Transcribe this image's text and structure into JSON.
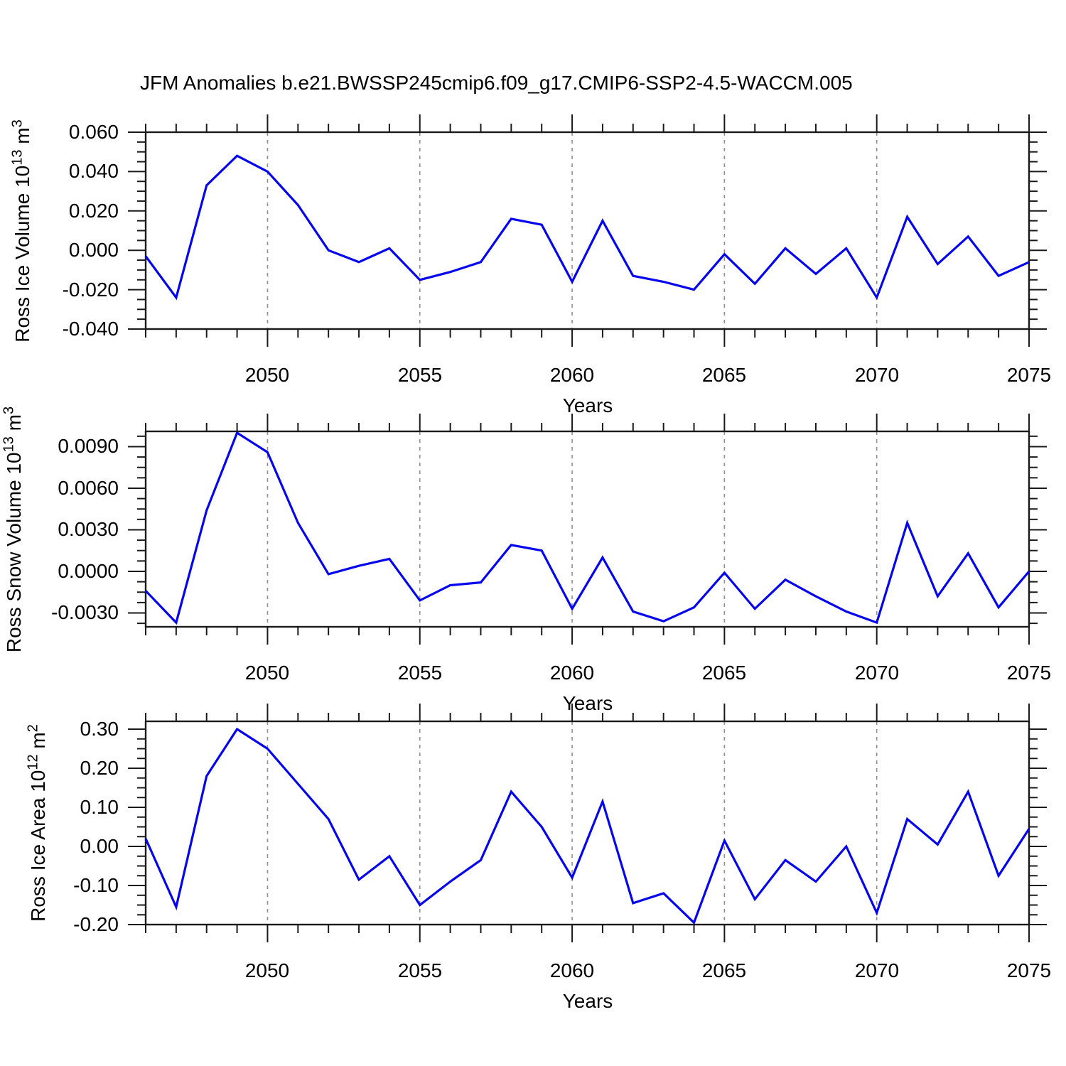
{
  "title": "JFM Anomalies b.e21.BWSSP245cmip6.f09_g17.CMIP6-SSP2-4.5-WACCM.005",
  "colors": {
    "line": "#0404ee",
    "grid": "#8f8f8f",
    "axis": "#1a1a1a",
    "text": "#000000",
    "background": "#ffffff"
  },
  "shared": {
    "xlabel": "Years",
    "xlim": [
      2046,
      2075
    ],
    "xtick_years": [
      2050,
      2055,
      2060,
      2065,
      2070,
      2075
    ],
    "xtick_labels": [
      "2050",
      "2055",
      "2060",
      "2065",
      "2070",
      "2075"
    ],
    "grid_years": [
      2050,
      2055,
      2060,
      2065,
      2070
    ],
    "years": [
      2046,
      2047,
      2048,
      2049,
      2050,
      2051,
      2052,
      2053,
      2054,
      2055,
      2056,
      2057,
      2058,
      2059,
      2060,
      2061,
      2062,
      2063,
      2064,
      2065,
      2066,
      2067,
      2068,
      2069,
      2070,
      2071,
      2072,
      2073,
      2074,
      2075
    ]
  },
  "chart_data": [
    {
      "type": "line",
      "name": "ross-ice-volume",
      "ylabel": {
        "text": "Ross Ice Volume 10",
        "exp": "13",
        "unit": " m",
        "unit_exp": "3"
      },
      "ylim": [
        -0.04,
        0.06
      ],
      "ytick_values": [
        0.06,
        0.04,
        0.02,
        0.0,
        -0.02,
        -0.04
      ],
      "ytick_labels": [
        "0.060",
        "0.040",
        "0.020",
        "0.000",
        "-0.020",
        "-0.040"
      ],
      "y_minor_step": 0.005,
      "values": [
        -0.003,
        -0.024,
        0.033,
        0.048,
        0.04,
        0.023,
        0.0,
        -0.006,
        0.001,
        -0.015,
        -0.011,
        -0.006,
        0.016,
        0.013,
        -0.016,
        0.015,
        -0.013,
        -0.016,
        -0.02,
        -0.002,
        -0.017,
        0.001,
        -0.012,
        0.001,
        -0.024,
        0.017,
        -0.007,
        0.007,
        -0.013,
        -0.006
      ]
    },
    {
      "type": "line",
      "name": "ross-snow-volume",
      "ylabel": {
        "text": "Ross Snow Volume 10",
        "exp": "13",
        "unit": " m",
        "unit_exp": "3"
      },
      "ylim": [
        -0.004,
        0.0101
      ],
      "ytick_values": [
        0.009,
        0.006,
        0.003,
        0.0,
        -0.003
      ],
      "ytick_labels": [
        "0.0090",
        "0.0060",
        "0.0030",
        "0.0000",
        "-0.0030"
      ],
      "y_minor_step": 0.00075,
      "values": [
        -0.0014,
        -0.0037,
        0.0044,
        0.01,
        0.0086,
        0.0035,
        -0.0002,
        0.0004,
        0.0009,
        -0.0021,
        -0.001,
        -0.0008,
        0.0019,
        0.0015,
        -0.0027,
        0.001,
        -0.0029,
        -0.0036,
        -0.0026,
        -0.0001,
        -0.0027,
        -0.0006,
        -0.0018,
        -0.0029,
        -0.0037,
        0.0035,
        -0.0018,
        0.0013,
        -0.0026,
        0.0
      ]
    },
    {
      "type": "line",
      "name": "ross-ice-area",
      "ylabel": {
        "text": "Ross Ice Area 10",
        "exp": "12",
        "unit": " m",
        "unit_exp": "2"
      },
      "ylim": [
        -0.2,
        0.32
      ],
      "ytick_values": [
        0.3,
        0.2,
        0.1,
        0.0,
        -0.1,
        -0.2
      ],
      "ytick_labels": [
        "0.30",
        "0.20",
        "0.10",
        "0.00",
        "-0.10",
        "-0.20"
      ],
      "y_minor_step": 0.025,
      "values": [
        0.02,
        -0.155,
        0.18,
        0.3,
        0.25,
        0.16,
        0.07,
        -0.085,
        -0.025,
        -0.15,
        -0.09,
        -0.035,
        0.14,
        0.05,
        -0.08,
        0.115,
        -0.145,
        -0.12,
        -0.195,
        0.015,
        -0.135,
        -0.035,
        -0.09,
        0.0,
        -0.17,
        0.07,
        0.005,
        0.14,
        -0.075,
        0.045
      ]
    }
  ]
}
